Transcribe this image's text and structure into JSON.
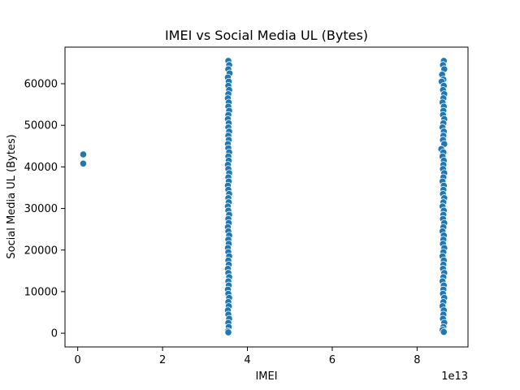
{
  "chart_data": {
    "type": "scatter",
    "title": "IMEI vs Social Media UL (Bytes)",
    "xlabel": "IMEI",
    "ylabel": "Social Media UL (Bytes)",
    "x_offset_label": "1e13",
    "xlim": [
      -0.3,
      9.2
    ],
    "ylim": [
      -3300,
      68800
    ],
    "x_ticks": [
      0,
      2,
      4,
      6,
      8
    ],
    "x_tick_labels": [
      "0",
      "2",
      "4",
      "6",
      "8"
    ],
    "y_ticks": [
      0,
      10000,
      20000,
      30000,
      40000,
      50000,
      60000
    ],
    "y_tick_labels": [
      "0",
      "10000",
      "20000",
      "30000",
      "40000",
      "50000",
      "60000"
    ],
    "grid": false,
    "point_color": "#1f77b4",
    "series": [
      {
        "points": [
          [
            0.13,
            43000
          ],
          [
            0.13,
            40800
          ],
          [
            3.55,
            65500
          ],
          [
            3.57,
            64500
          ],
          [
            3.55,
            63500
          ],
          [
            3.58,
            62500
          ],
          [
            3.54,
            61500
          ],
          [
            3.56,
            60500
          ],
          [
            3.55,
            59500
          ],
          [
            3.57,
            58500
          ],
          [
            3.55,
            57500
          ],
          [
            3.54,
            56500
          ],
          [
            3.56,
            55500
          ],
          [
            3.55,
            54500
          ],
          [
            3.57,
            53500
          ],
          [
            3.55,
            52500
          ],
          [
            3.54,
            51500
          ],
          [
            3.56,
            50500
          ],
          [
            3.55,
            49500
          ],
          [
            3.57,
            48500
          ],
          [
            3.55,
            47500
          ],
          [
            3.56,
            46500
          ],
          [
            3.54,
            45500
          ],
          [
            3.55,
            44500
          ],
          [
            3.57,
            43500
          ],
          [
            3.55,
            42500
          ],
          [
            3.56,
            41500
          ],
          [
            3.54,
            40500
          ],
          [
            3.55,
            39500
          ],
          [
            3.57,
            38500
          ],
          [
            3.55,
            37500
          ],
          [
            3.56,
            36500
          ],
          [
            3.54,
            35500
          ],
          [
            3.55,
            34500
          ],
          [
            3.57,
            33500
          ],
          [
            3.55,
            32500
          ],
          [
            3.56,
            31500
          ],
          [
            3.54,
            30500
          ],
          [
            3.55,
            29500
          ],
          [
            3.57,
            28500
          ],
          [
            3.55,
            27500
          ],
          [
            3.56,
            26500
          ],
          [
            3.54,
            25500
          ],
          [
            3.55,
            24500
          ],
          [
            3.57,
            23500
          ],
          [
            3.55,
            22500
          ],
          [
            3.56,
            21500
          ],
          [
            3.54,
            20500
          ],
          [
            3.55,
            19500
          ],
          [
            3.57,
            18500
          ],
          [
            3.55,
            17500
          ],
          [
            3.56,
            16500
          ],
          [
            3.54,
            15500
          ],
          [
            3.55,
            14500
          ],
          [
            3.57,
            13500
          ],
          [
            3.55,
            12500
          ],
          [
            3.56,
            11500
          ],
          [
            3.54,
            10500
          ],
          [
            3.55,
            9500
          ],
          [
            3.57,
            8500
          ],
          [
            3.55,
            7500
          ],
          [
            3.56,
            6500
          ],
          [
            3.54,
            5500
          ],
          [
            3.55,
            4500
          ],
          [
            3.57,
            3500
          ],
          [
            3.55,
            2500
          ],
          [
            3.56,
            1500
          ],
          [
            3.54,
            500
          ],
          [
            3.55,
            200
          ],
          [
            8.63,
            65500
          ],
          [
            8.61,
            64500
          ],
          [
            8.64,
            63500
          ],
          [
            8.59,
            62200
          ],
          [
            8.62,
            61000
          ],
          [
            8.58,
            60500
          ],
          [
            8.63,
            59500
          ],
          [
            8.61,
            58500
          ],
          [
            8.64,
            57500
          ],
          [
            8.62,
            56500
          ],
          [
            8.6,
            55500
          ],
          [
            8.63,
            54500
          ],
          [
            8.62,
            53500
          ],
          [
            8.61,
            52500
          ],
          [
            8.64,
            51500
          ],
          [
            8.62,
            50500
          ],
          [
            8.6,
            49500
          ],
          [
            8.63,
            48500
          ],
          [
            8.62,
            47500
          ],
          [
            8.61,
            46500
          ],
          [
            8.64,
            45500
          ],
          [
            8.57,
            44300
          ],
          [
            8.62,
            43500
          ],
          [
            8.6,
            42500
          ],
          [
            8.63,
            41500
          ],
          [
            8.62,
            40500
          ],
          [
            8.61,
            39500
          ],
          [
            8.64,
            38500
          ],
          [
            8.62,
            37500
          ],
          [
            8.6,
            36500
          ],
          [
            8.63,
            35500
          ],
          [
            8.62,
            34500
          ],
          [
            8.61,
            33500
          ],
          [
            8.64,
            32500
          ],
          [
            8.62,
            31500
          ],
          [
            8.6,
            30500
          ],
          [
            8.63,
            29500
          ],
          [
            8.62,
            28500
          ],
          [
            8.61,
            27500
          ],
          [
            8.64,
            26500
          ],
          [
            8.62,
            25500
          ],
          [
            8.6,
            24500
          ],
          [
            8.63,
            23500
          ],
          [
            8.62,
            22500
          ],
          [
            8.61,
            21500
          ],
          [
            8.64,
            20500
          ],
          [
            8.62,
            19500
          ],
          [
            8.6,
            18500
          ],
          [
            8.63,
            17500
          ],
          [
            8.62,
            16500
          ],
          [
            8.61,
            15500
          ],
          [
            8.64,
            14500
          ],
          [
            8.62,
            13500
          ],
          [
            8.6,
            12500
          ],
          [
            8.63,
            11500
          ],
          [
            8.62,
            10500
          ],
          [
            8.61,
            9500
          ],
          [
            8.64,
            8500
          ],
          [
            8.62,
            7500
          ],
          [
            8.6,
            6500
          ],
          [
            8.63,
            5500
          ],
          [
            8.62,
            4500
          ],
          [
            8.61,
            3500
          ],
          [
            8.64,
            2500
          ],
          [
            8.62,
            1500
          ],
          [
            8.6,
            800
          ],
          [
            8.63,
            300
          ]
        ]
      }
    ]
  }
}
